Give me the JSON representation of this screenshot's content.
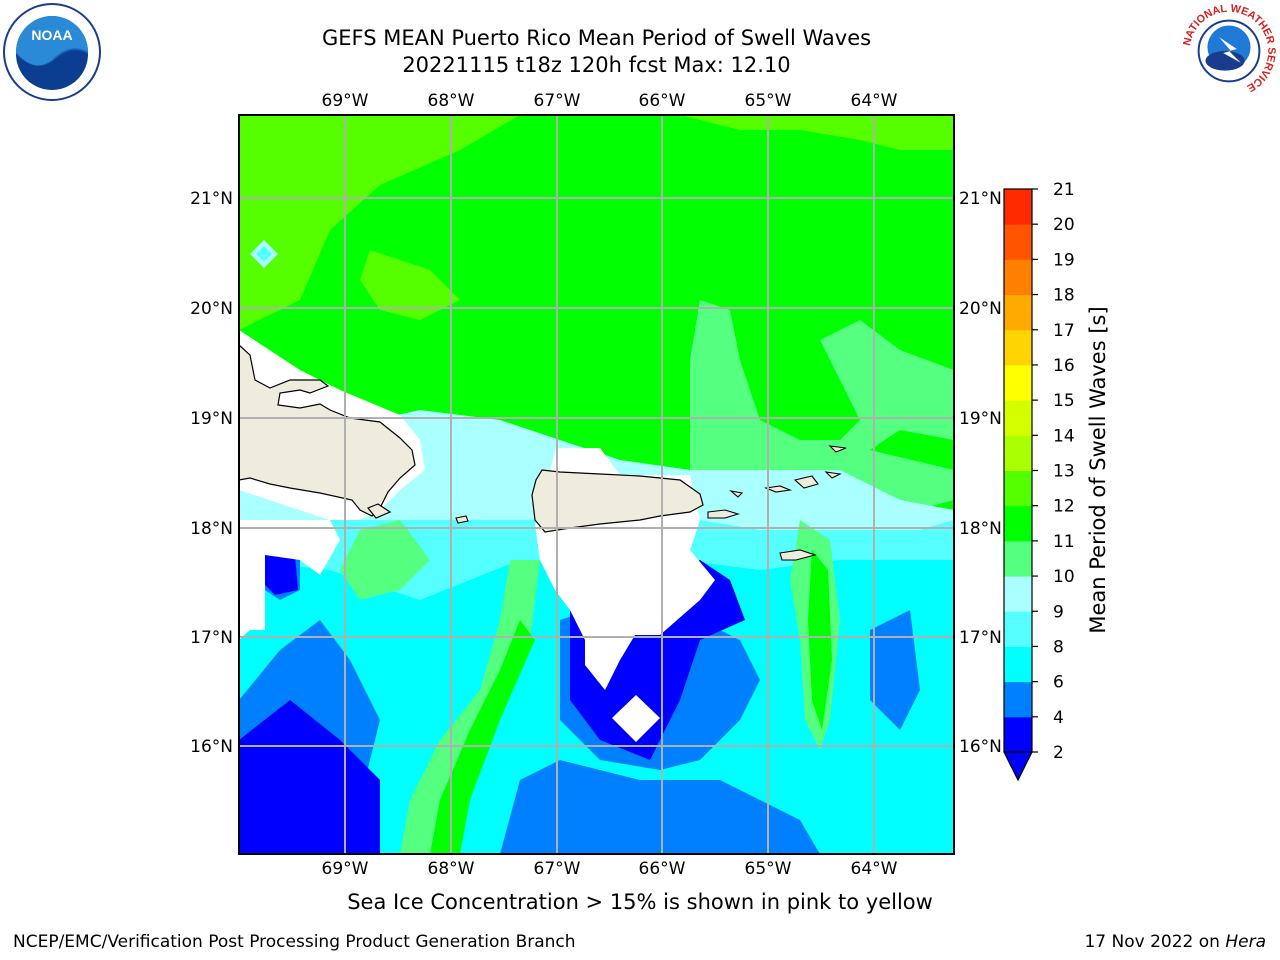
{
  "header": {
    "title_line1": "GEFS MEAN Puerto Rico Mean Period of Swell Waves",
    "title_line2": "20221115 t18z 120h fcst   Max: 12.10"
  },
  "logos": {
    "left": {
      "icon": "noaa-logo",
      "text": "NOAA"
    },
    "right": {
      "icon": "nws-logo",
      "ring_text": "NATIONAL WEATHER SERVICE"
    }
  },
  "map": {
    "lon_labels": [
      "69°W",
      "68°W",
      "67°W",
      "66°W",
      "65°W",
      "64°W"
    ],
    "lat_labels": [
      "21°N",
      "20°N",
      "19°N",
      "18°N",
      "17°N",
      "16°N"
    ],
    "colors": {
      "land": "#eeecdc",
      "grid": "#b0b0b0"
    }
  },
  "colorbar": {
    "label": "Mean Period of Swell Waves [s]",
    "ticks": [
      "2",
      "4",
      "6",
      "8",
      "9",
      "10",
      "11",
      "12",
      "13",
      "14",
      "15",
      "16",
      "17",
      "18",
      "19",
      "20",
      "21"
    ],
    "colors": [
      "#0000ff",
      "#0080ff",
      "#00ffff",
      "#55ffff",
      "#aaffff",
      "#55ff80",
      "#00ff00",
      "#55ff00",
      "#aaff00",
      "#d4ff00",
      "#ffff00",
      "#ffd400",
      "#ffaa00",
      "#ff8000",
      "#ff5500",
      "#ff2a00",
      "#ff0000"
    ],
    "extend_min_color": "#0000ff"
  },
  "note": "Sea Ice Concentration > 15% is shown in pink to yellow",
  "footer": {
    "left": "NCEP/EMC/Verification Post Processing Product Generation Branch",
    "right_date": "17 Nov 2022 on ",
    "right_host": "Hera"
  }
}
